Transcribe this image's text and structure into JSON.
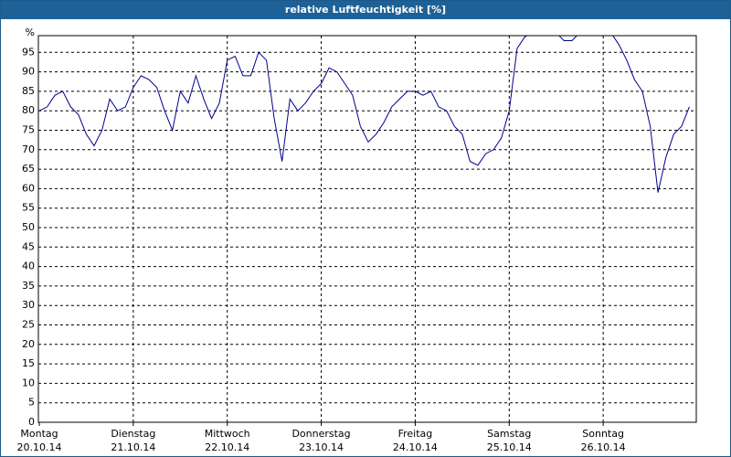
{
  "chart_data": {
    "type": "line",
    "title": "relative Luftfeuchtigkeit [%]",
    "categories": [
      "Montag\n20.10.14",
      null,
      null,
      null,
      null,
      null,
      null,
      null,
      null,
      null,
      null,
      null,
      "Dienstag\n21.10.14",
      null,
      null,
      null,
      null,
      null,
      null,
      null,
      null,
      null,
      null,
      null,
      "Mittwoch\n22.10.14",
      null,
      null,
      null,
      null,
      null,
      null,
      null,
      null,
      null,
      null,
      null,
      "Donnerstag\n23.10.14",
      null,
      null,
      null,
      null,
      null,
      null,
      null,
      null,
      null,
      null,
      null,
      "Freitag\n24.10.14",
      null,
      null,
      null,
      null,
      null,
      null,
      null,
      null,
      null,
      null,
      null,
      "Samstag\n25.10.14",
      null,
      null,
      null,
      null,
      null,
      null,
      null,
      null,
      null,
      null,
      null,
      "Sonntag\n26.10.14",
      null,
      null,
      null,
      null,
      null,
      null,
      null,
      null,
      null,
      null,
      null
    ],
    "values": [
      80,
      81,
      84,
      85,
      81,
      79,
      74,
      71,
      75,
      83,
      80,
      81,
      86,
      89,
      88,
      86,
      80,
      75,
      85,
      82,
      89,
      83,
      78,
      82,
      93,
      94,
      89,
      89,
      95,
      93,
      78,
      67,
      83,
      80,
      82,
      85,
      87,
      91,
      90,
      87,
      84,
      76,
      72,
      74,
      77,
      81,
      83,
      85,
      85,
      84,
      85,
      81,
      80,
      76,
      74,
      67,
      66,
      69,
      70,
      73,
      80,
      96,
      99,
      100,
      100,
      100,
      100,
      98,
      98,
      100,
      100,
      100,
      100,
      100,
      97,
      93,
      88,
      85,
      76,
      59,
      68,
      74,
      76,
      81
    ],
    "color": "#00008b",
    "ylim": [
      0,
      100
    ],
    "yticks": [
      0,
      5,
      10,
      15,
      20,
      25,
      30,
      35,
      40,
      45,
      50,
      55,
      60,
      65,
      70,
      75,
      80,
      85,
      90,
      95,
      {
        "value": 100,
        "label": "%"
      }
    ],
    "grid": true
  }
}
